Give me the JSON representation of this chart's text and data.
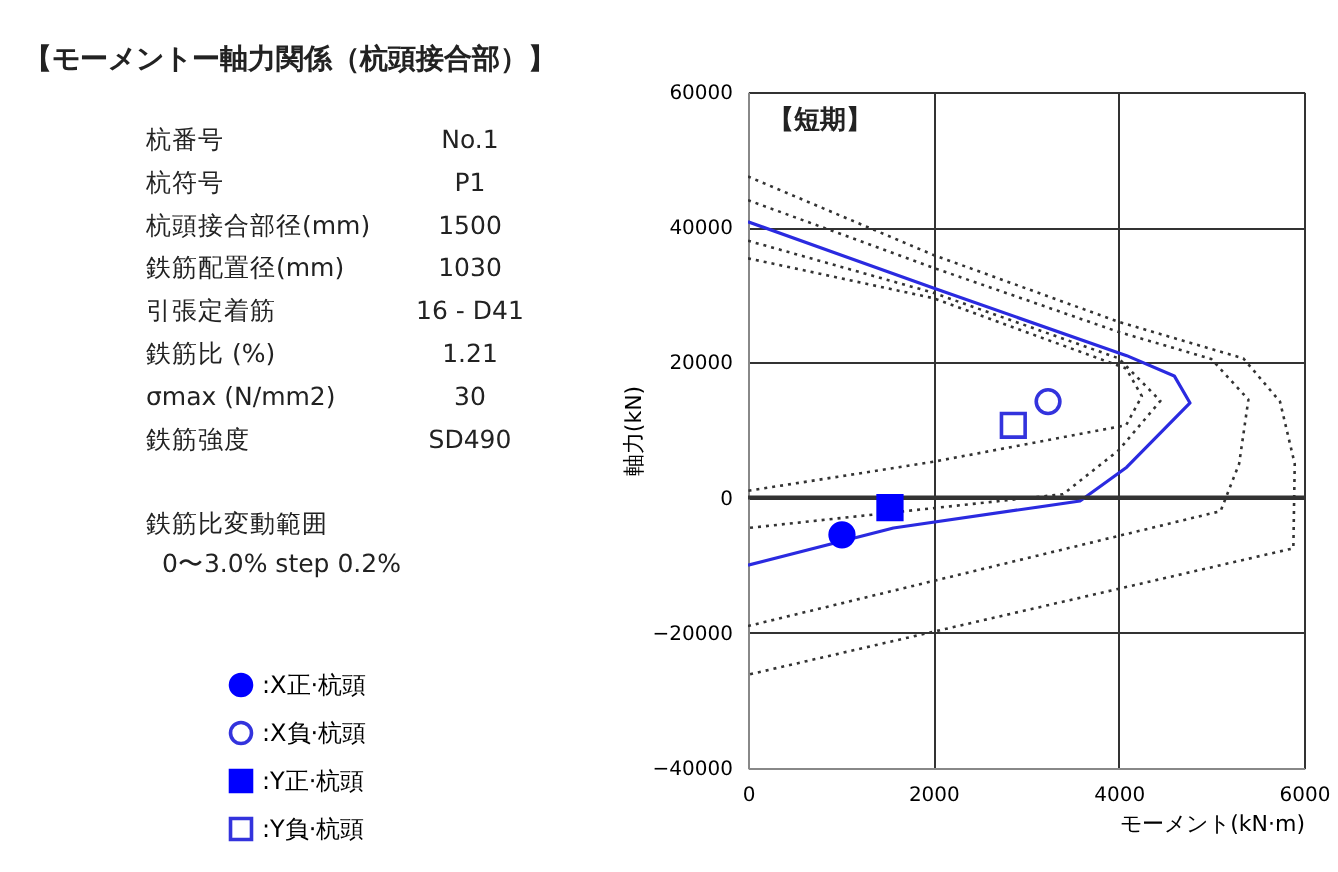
{
  "chart_data": [
    {
      "type": "other",
      "title": "【モーメントー軸力関係（杭頭接合部）】",
      "annotations": [
        "杭番号",
        "No.1",
        "杭符号",
        "P1",
        "杭頭接合部径(mm)",
        "1500",
        "鉄筋配置径(mm)",
        "1030",
        "引張定着筋",
        "16 - D41",
        "鉄筋比 (%)",
        "1.21",
        "σmax (N/mm2)",
        "30",
        "鉄筋強度",
        "SD490",
        "鉄筋比変動範囲",
        "0〜3.0% step 0.2%"
      ]
    },
    {
      "type": "line",
      "xlabel": "モーメント(kN·m)",
      "ylabel": "軸力(kN)",
      "xlim": [
        0,
        6000
      ],
      "xticks": [
        0,
        2000,
        4000,
        6000
      ],
      "ylim": [
        -40000,
        60000
      ],
      "yticks": [
        -40000,
        -20000,
        0,
        20000,
        40000,
        60000
      ],
      "grid": true,
      "legend": "left",
      "annotations": [
        "【短期】"
      ],
      "ref_lines": [
        {
          "axis": "y",
          "value": 0,
          "color": "#333333"
        }
      ],
      "series": [
        {
          "type": "line",
          "color": "#333333",
          "line_style": "dotted",
          "x": [
            0,
            2000,
            4080,
            4250,
            4080,
            2000,
            0
          ],
          "values": [
            35400,
            29500,
            19100,
            15000,
            10700,
            5300,
            1000
          ]
        },
        {
          "type": "line",
          "color": "#333333",
          "line_style": "dotted",
          "x": [
            0,
            2000,
            4000,
            4450,
            4000,
            3400,
            0
          ],
          "values": [
            38000,
            30300,
            20600,
            14300,
            7000,
            500,
            -4500
          ]
        },
        {
          "type": "line",
          "color": "#333333",
          "line_style": "dotted",
          "x": [
            0,
            2000,
            4000,
            5000,
            5400,
            5300,
            5100,
            0
          ],
          "values": [
            44000,
            34000,
            24500,
            20500,
            14500,
            5000,
            -2000,
            -19000
          ]
        },
        {
          "type": "line",
          "color": "#333333",
          "line_style": "dotted",
          "x": [
            0,
            2000,
            4000,
            5345,
            5741,
            5900,
            5885,
            0
          ],
          "values": [
            47500,
            35900,
            26000,
            20600,
            14200,
            5000,
            -7500,
            -26200
          ]
        },
        {
          "type": "line",
          "color": "#2a2ae0",
          "line_style": "solid",
          "x": [
            0,
            2000,
            4087,
            4600,
            4770,
            4087,
            3583,
            1569,
            0
          ],
          "values": [
            40800,
            31000,
            21000,
            18000,
            14000,
            4500,
            -500,
            -4500,
            -10000
          ]
        },
        {
          "type": "scatter",
          "name": ":X正·杭頭",
          "color": "#0000ff",
          "marker": "circle",
          "x": [
            1014
          ],
          "values": [
            -5500
          ]
        },
        {
          "type": "scatter",
          "name": ":X負·杭頭",
          "color": "#3333dd",
          "marker": "circle",
          "x": [
            3238
          ],
          "values": [
            14200
          ]
        },
        {
          "type": "scatter",
          "name": ":Y正·杭頭",
          "color": "#0000ff",
          "marker": "square",
          "x": [
            1532
          ],
          "values": [
            -1500
          ]
        },
        {
          "type": "scatter",
          "name": ":Y負·杭頭",
          "color": "#3333dd",
          "marker": "square",
          "x": [
            2863
          ],
          "values": [
            10700
          ]
        }
      ]
    }
  ]
}
